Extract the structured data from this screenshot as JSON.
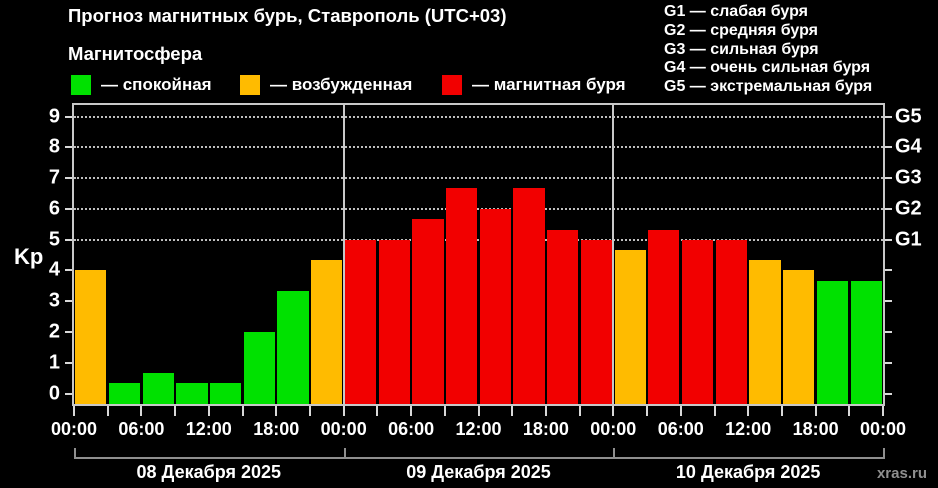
{
  "header": {
    "title": "Прогноз магнитных бурь, Ставрополь (UTC+03)",
    "subtitle": "Магнитосфера"
  },
  "legend": {
    "items": [
      {
        "key": "quiet",
        "label": "— спокойная",
        "color": "#00e100"
      },
      {
        "key": "excited",
        "label": "— возбужденная",
        "color": "#ffbb00"
      },
      {
        "key": "storm",
        "label": "— магнитная буря",
        "color": "#f20000"
      }
    ]
  },
  "g_legend": {
    "items": [
      "G1 — слабая буря",
      "G2 — средняя буря",
      "G3 — сильная буря",
      "G4 — очень сильная буря",
      "G5 — экстремальная буря"
    ]
  },
  "footer": {
    "watermark": "xras.ru"
  },
  "chart_data": {
    "type": "bar",
    "title": "Прогноз магнитных бурь, Ставрополь (UTC+03)",
    "ylabel": "Kp",
    "ylim": [
      0,
      9
    ],
    "yticks": [
      0,
      1,
      2,
      3,
      4,
      5,
      6,
      7,
      8,
      9
    ],
    "grid_levels": [
      5,
      6,
      7,
      8,
      9
    ],
    "right_axis": [
      {
        "kp": 5,
        "label": "G1"
      },
      {
        "kp": 6,
        "label": "G2"
      },
      {
        "kp": 7,
        "label": "G3"
      },
      {
        "kp": 8,
        "label": "G4"
      },
      {
        "kp": 9,
        "label": "G5"
      }
    ],
    "bar_interval_hours": 3,
    "x_tick_labels": [
      "00:00",
      "06:00",
      "12:00",
      "18:00",
      "00:00",
      "06:00",
      "12:00",
      "18:00",
      "00:00",
      "06:00",
      "12:00",
      "18:00",
      "00:00"
    ],
    "level_colors": {
      "quiet": "#00e100",
      "excited": "#ffbb00",
      "storm": "#f20000"
    },
    "days": [
      {
        "date": "08 Декабря 2025",
        "values": [
          4.0,
          0.33,
          0.67,
          0.33,
          0.33,
          2.0,
          3.33,
          4.33
        ],
        "levels": [
          "excited",
          "quiet",
          "quiet",
          "quiet",
          "quiet",
          "quiet",
          "quiet",
          "excited"
        ]
      },
      {
        "date": "09 Декабря 2025",
        "values": [
          5.0,
          5.0,
          5.67,
          6.67,
          6.0,
          6.67,
          5.33,
          5.0
        ],
        "levels": [
          "storm",
          "storm",
          "storm",
          "storm",
          "storm",
          "storm",
          "storm",
          "storm"
        ]
      },
      {
        "date": "10 Декабря 2025",
        "values": [
          4.67,
          5.33,
          5.0,
          5.0,
          4.33,
          4.0,
          3.67,
          3.67
        ],
        "levels": [
          "excited",
          "storm",
          "storm",
          "storm",
          "excited",
          "excited",
          "quiet",
          "quiet"
        ]
      }
    ]
  }
}
